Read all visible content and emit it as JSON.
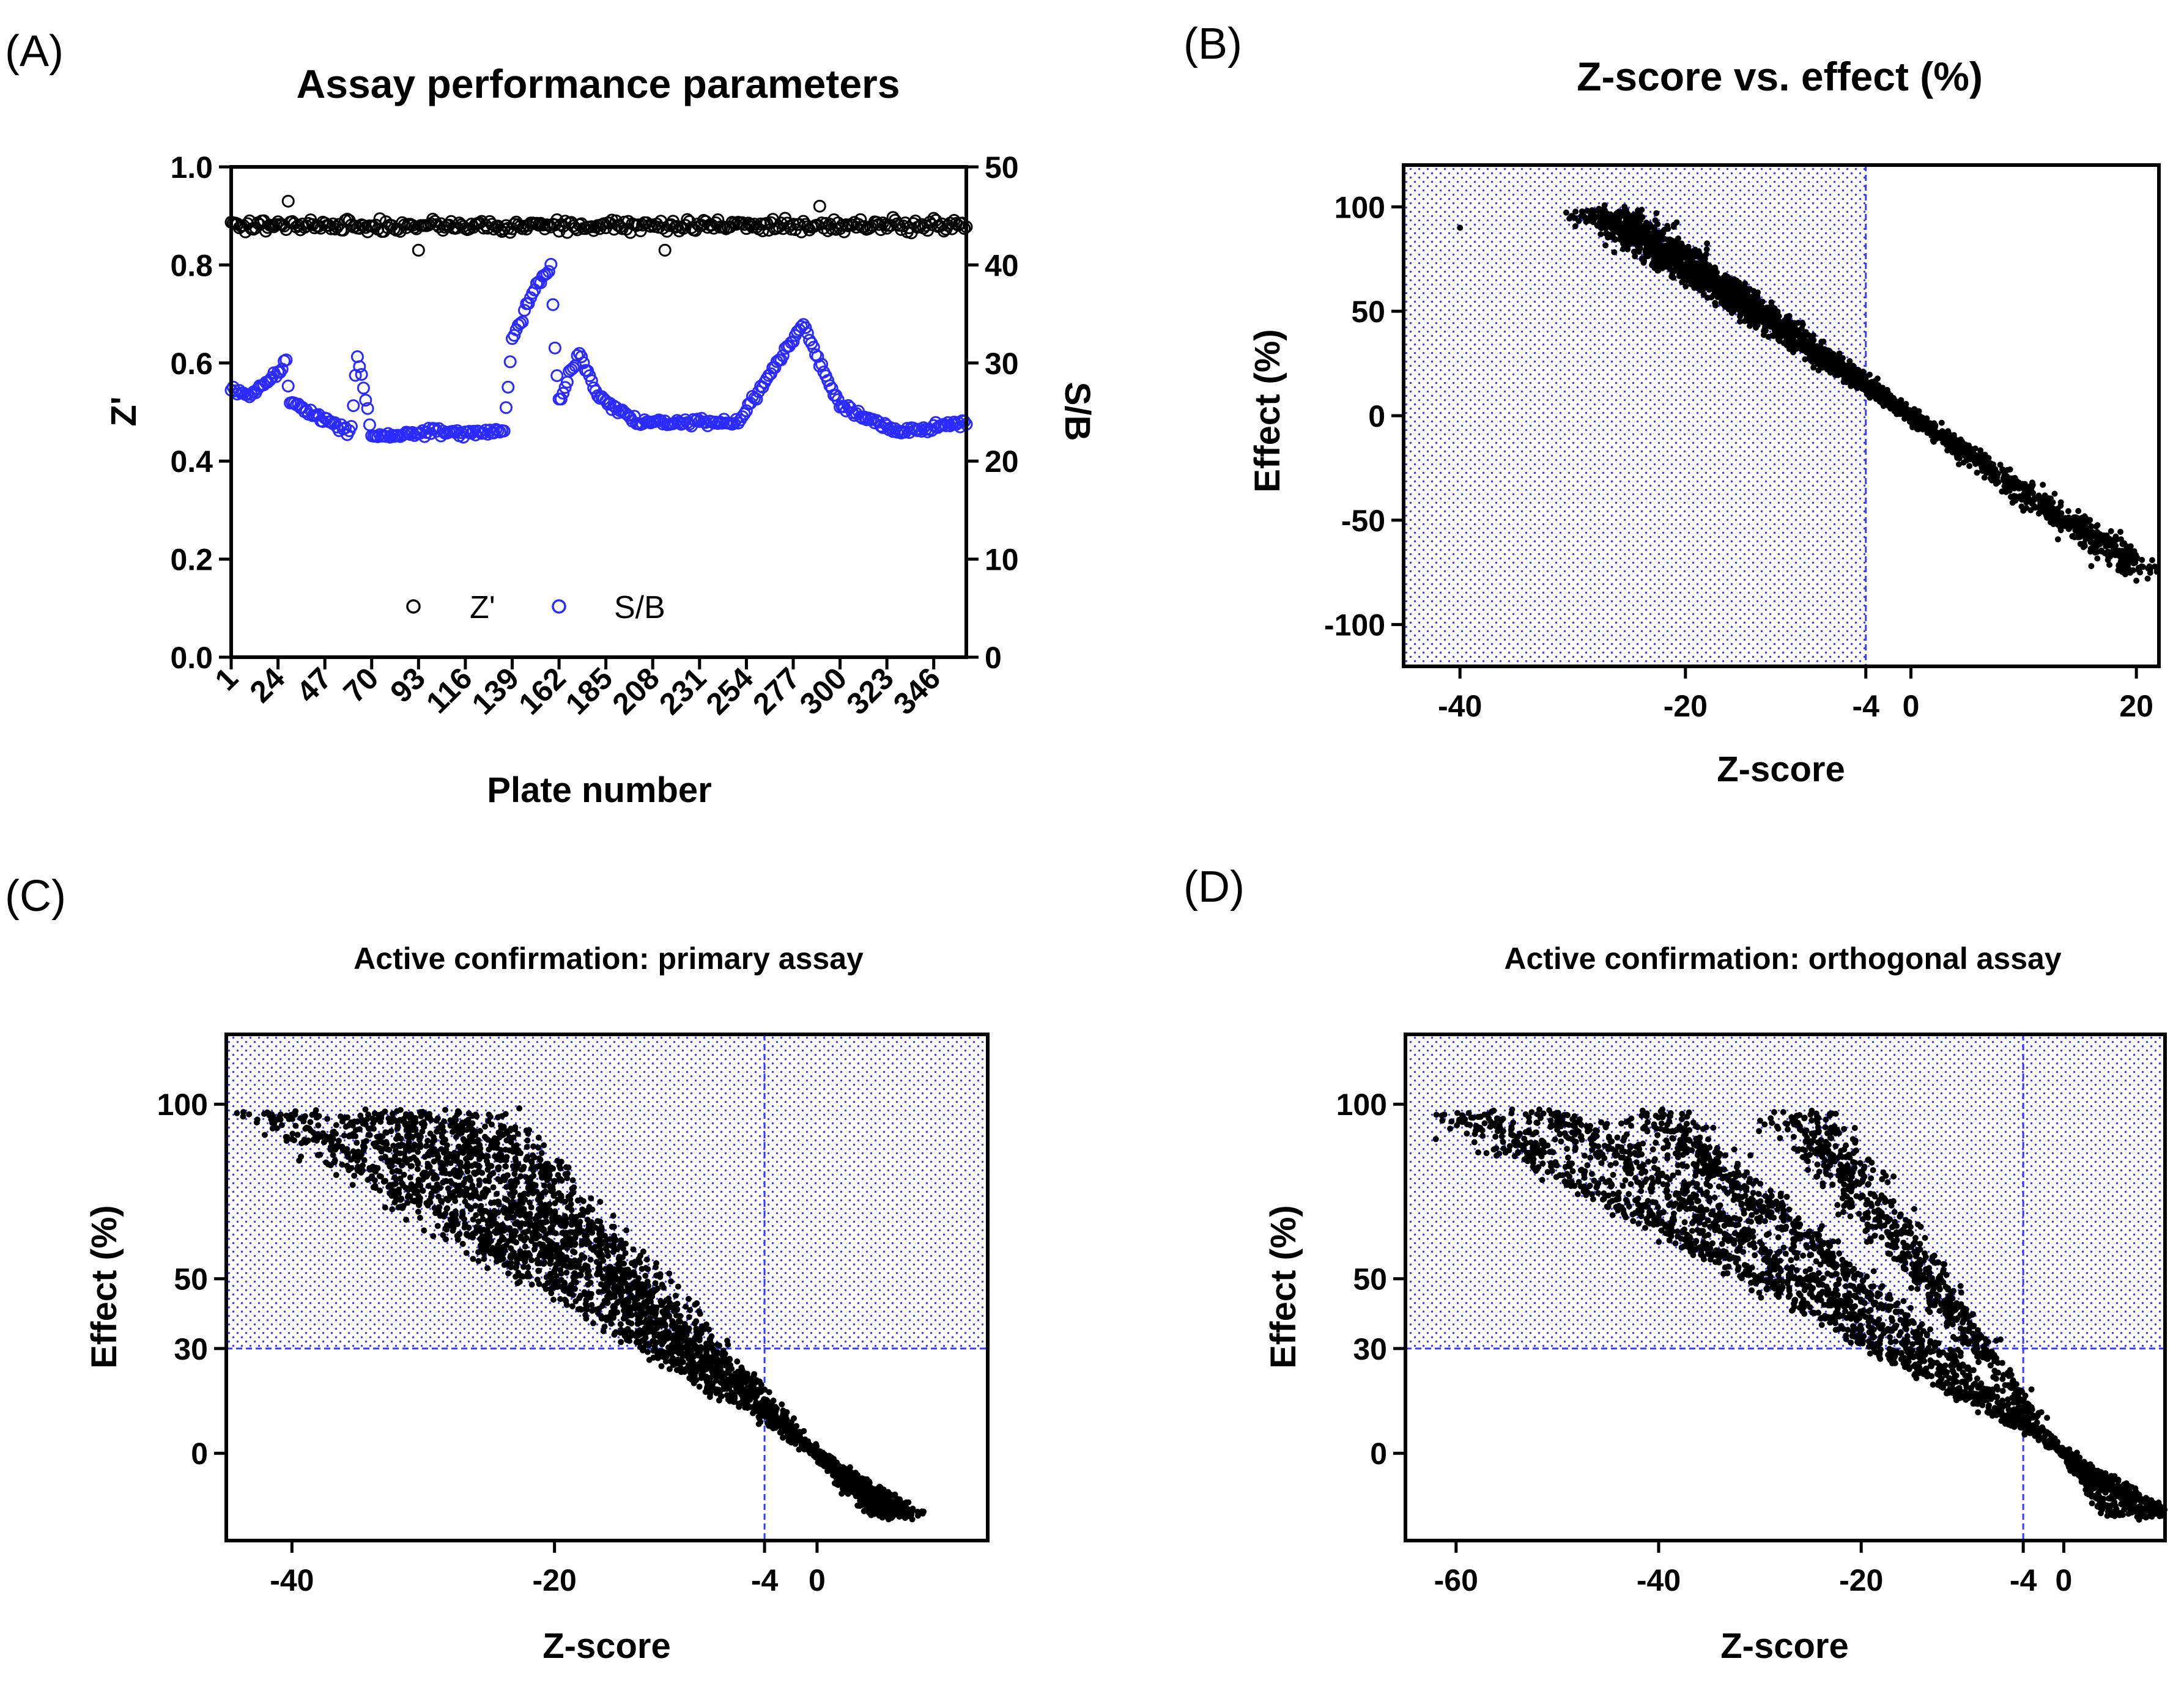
{
  "panels": {
    "A": {
      "letter": "(A)"
    },
    "B": {
      "letter": "(B)"
    },
    "C": {
      "letter": "(C)"
    },
    "D": {
      "letter": "(D)"
    }
  },
  "colors": {
    "zprime": "#000000",
    "sb": "#2b2bff",
    "region": "#3a3aff",
    "points": "#000000"
  },
  "chart_data": [
    {
      "id": "A",
      "type": "scatter",
      "title": "Assay performance parameters",
      "xlabel": "Plate number",
      "ylabel": "Z'",
      "ylabel_right": "S/B",
      "xlim": [
        1,
        362
      ],
      "ylim": [
        0,
        1.0
      ],
      "ylim_right": [
        0,
        50
      ],
      "xticks": [
        "1",
        "24",
        "47",
        "70",
        "93",
        "116",
        "139",
        "162",
        "185",
        "208",
        "231",
        "254",
        "277",
        "300",
        "323",
        "346"
      ],
      "yticks": [
        "0.0",
        "0.2",
        "0.4",
        "0.6",
        "0.8",
        "1.0"
      ],
      "yticks_right": [
        "0",
        "10",
        "20",
        "30",
        "40",
        "50"
      ],
      "legend": {
        "position": "bottom-center",
        "entries": [
          "Z'",
          "S/B"
        ]
      },
      "series": [
        {
          "name": "Z'",
          "axis": "left",
          "summary": "approx. 0.84-0.92 across all 362 plates, mean ~0.88",
          "outliers": [
            [
              29,
              0.93
            ],
            [
              93,
              0.81
            ],
            [
              214,
              0.83
            ],
            [
              290,
              0.92
            ]
          ]
        },
        {
          "name": "S/B",
          "axis": "right",
          "summary": "approx. 22-40; ~25 for plates 1-60, ~22 for plates 70-135, 25-40 for plates 138-175, ~24 thereafter",
          "anchors": [
            [
              1,
              27.5
            ],
            [
              10,
              26.5
            ],
            [
              28,
              30
            ],
            [
              30,
              26
            ],
            [
              60,
              23
            ],
            [
              63,
              31
            ],
            [
              70,
              22.5
            ],
            [
              100,
              23
            ],
            [
              135,
              23
            ],
            [
              139,
              32.5
            ],
            [
              150,
              37.5
            ],
            [
              158,
              40
            ],
            [
              160,
              32
            ],
            [
              162,
              26
            ],
            [
              172,
              31
            ],
            [
              180,
              27
            ],
            [
              200,
              24
            ],
            [
              250,
              24
            ],
            [
              282,
              34
            ],
            [
              300,
              25.5
            ],
            [
              330,
              23
            ],
            [
              362,
              24
            ]
          ]
        }
      ]
    },
    {
      "id": "B",
      "type": "scatter",
      "title": "Z-score vs. effect (%)",
      "xlabel": "Z-score",
      "ylabel": "Effect (%)",
      "xlim": [
        -45,
        22
      ],
      "ylim": [
        -120,
        120
      ],
      "xticks": [
        "-40",
        "-20",
        "-4",
        "0",
        "20"
      ],
      "yticks": [
        "-100",
        "-50",
        "0",
        "50",
        "100"
      ],
      "hit_region": {
        "x": [
          -45,
          -4
        ],
        "y": [
          -120,
          120
        ]
      },
      "threshold_x": -4,
      "trend": {
        "slope_effect_per_z": -3.6,
        "x_range": [
          -27,
          21
        ]
      },
      "points": [
        [
          -40,
          90
        ],
        [
          -27,
          97
        ],
        [
          -25,
          95
        ],
        [
          -20,
          78
        ],
        [
          -15,
          55
        ],
        [
          -10,
          35
        ],
        [
          -4,
          12
        ],
        [
          0,
          0
        ],
        [
          5,
          -20
        ],
        [
          10,
          -40
        ],
        [
          15,
          -58
        ],
        [
          16,
          -72
        ],
        [
          20,
          -79
        ],
        [
          21,
          -78
        ]
      ]
    },
    {
      "id": "C",
      "type": "scatter",
      "title": "Active confirmation: primary assay",
      "xlabel": "Z-score",
      "ylabel": "Effect (%)",
      "xlim": [
        -45,
        13
      ],
      "ylim": [
        -25,
        120
      ],
      "xticks": [
        "-40",
        "-20",
        "-4",
        "0"
      ],
      "yticks": [
        "0",
        "30",
        "50",
        "100"
      ],
      "hit_region": {
        "x": [
          -45,
          13
        ],
        "y": [
          30,
          120
        ]
      },
      "threshold_x": -4,
      "threshold_y": 30,
      "rays_slopes": [
        -3.7,
        -3.2,
        -2.8,
        -2.4
      ],
      "points": [
        [
          -40,
          90
        ],
        [
          -35,
          84
        ],
        [
          -32,
          98
        ],
        [
          -26,
          97
        ],
        [
          -25,
          97
        ],
        [
          -20,
          78
        ],
        [
          -10,
          42
        ],
        [
          -4,
          12
        ],
        [
          0,
          0
        ],
        [
          4,
          -12
        ],
        [
          7,
          -18
        ]
      ]
    },
    {
      "id": "D",
      "type": "scatter",
      "title": "Active confirmation: orthogonal assay",
      "xlabel": "Z-score",
      "ylabel": "Effect (%)",
      "xlim": [
        -65,
        10
      ],
      "ylim": [
        -25,
        120
      ],
      "xticks": [
        "-60",
        "-40",
        "-20",
        "-4",
        "0"
      ],
      "yticks": [
        "0",
        "30",
        "50",
        "100"
      ],
      "hit_region": {
        "x": [
          -65,
          10
        ],
        "y": [
          30,
          120
        ]
      },
      "threshold_x": -4,
      "threshold_y": 30,
      "rays_slopes": [
        -3.7,
        -2.4,
        -1.95,
        -1.65
      ],
      "points": [
        [
          -62,
          90
        ],
        [
          -57,
          86
        ],
        [
          -50,
          97
        ],
        [
          -25,
          97
        ],
        [
          -20,
          80
        ],
        [
          -10,
          40
        ],
        [
          -4,
          12
        ],
        [
          0,
          0
        ],
        [
          3,
          -10
        ],
        [
          5,
          -14
        ]
      ]
    }
  ]
}
